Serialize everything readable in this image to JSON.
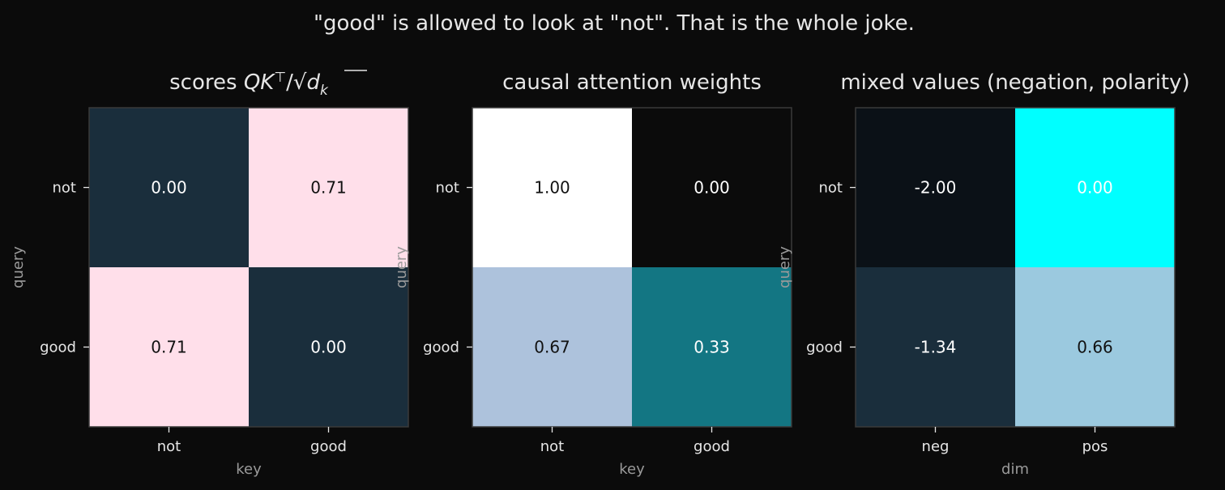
{
  "figure": {
    "suptitle": "\"good\" is allowed to look at \"not\". That is the whole joke.",
    "background": "#0b0b0b",
    "text_color": "#e6e6e6",
    "axis_label_color": "#9a9a9a"
  },
  "chart_data": [
    {
      "type": "heatmap",
      "title": "scores  QK⊤/√d_k",
      "rows": [
        "not",
        "good"
      ],
      "cols": [
        "not",
        "good"
      ],
      "values": [
        [
          0.0,
          0.71
        ],
        [
          0.71,
          0.0
        ]
      ],
      "labels": [
        [
          "0.00",
          "0.71"
        ],
        [
          "0.71",
          "0.00"
        ]
      ],
      "colors": [
        [
          "#1a2e3c",
          "#ffdfea"
        ],
        [
          "#ffdfea",
          "#1a2e3c"
        ]
      ],
      "label_colors": [
        [
          "#ffffff",
          "#111111"
        ],
        [
          "#111111",
          "#ffffff"
        ]
      ],
      "xlabel": "key",
      "ylabel": "query"
    },
    {
      "type": "heatmap",
      "title": "causal attention weights",
      "rows": [
        "not",
        "good"
      ],
      "cols": [
        "not",
        "good"
      ],
      "values": [
        [
          1.0,
          0.0
        ],
        [
          0.67,
          0.33
        ]
      ],
      "labels": [
        [
          "1.00",
          "0.00"
        ],
        [
          "0.67",
          "0.33"
        ]
      ],
      "colors": [
        [
          "#ffffff",
          "#0b0b0b"
        ],
        [
          "#adc2dc",
          "#137683"
        ]
      ],
      "label_colors": [
        [
          "#111111",
          "#ffffff"
        ],
        [
          "#111111",
          "#ffffff"
        ]
      ],
      "xlabel": "key",
      "ylabel": "query"
    },
    {
      "type": "heatmap",
      "title": "mixed values  (negation, polarity)",
      "rows": [
        "not",
        "good"
      ],
      "cols": [
        "neg",
        "pos"
      ],
      "values": [
        [
          -2.0,
          0.0
        ],
        [
          -1.34,
          0.66
        ]
      ],
      "labels": [
        [
          "-2.00",
          "0.00"
        ],
        [
          "-1.34",
          "0.66"
        ]
      ],
      "colors": [
        [
          "#0b1117",
          "#00ffff"
        ],
        [
          "#1a2e3c",
          "#9bc9df"
        ]
      ],
      "label_colors": [
        [
          "#ffffff",
          "#ffffff"
        ],
        [
          "#ffffff",
          "#111111"
        ]
      ],
      "xlabel": "dim",
      "ylabel": "query"
    }
  ]
}
